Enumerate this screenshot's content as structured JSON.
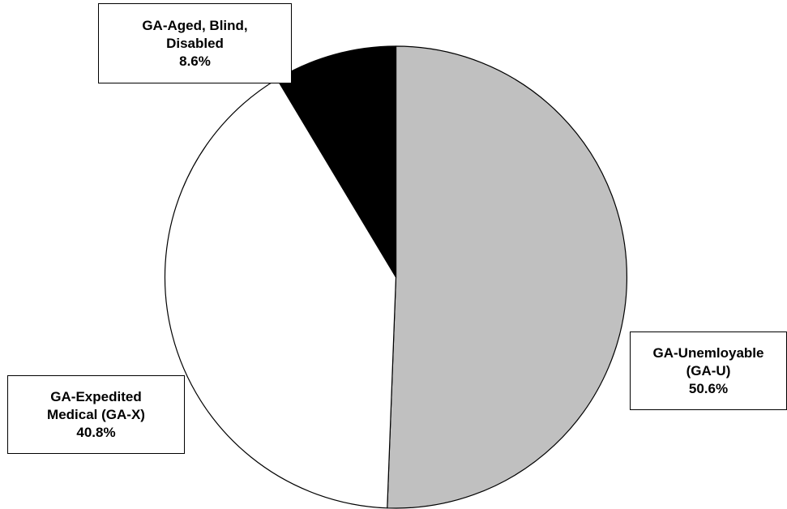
{
  "chart_data": {
    "type": "pie",
    "title": "",
    "slices": [
      {
        "label_lines": [
          "GA-Unemloyable",
          "(GA-U)"
        ],
        "value": 50.6,
        "value_label": "50.6%",
        "color": "#c0c0c0"
      },
      {
        "label_lines": [
          "GA-Expedited",
          "Medical (GA-X)"
        ],
        "value": 40.8,
        "value_label": "40.8%",
        "color": "#ffffff"
      },
      {
        "label_lines": [
          "GA-Aged, Blind,",
          "Disabled"
        ],
        "value": 8.6,
        "value_label": "8.6%",
        "color": "#000000"
      }
    ],
    "start_angle_deg": 0,
    "direction": "clockwise",
    "legend": "none",
    "outline_color": "#000000"
  }
}
